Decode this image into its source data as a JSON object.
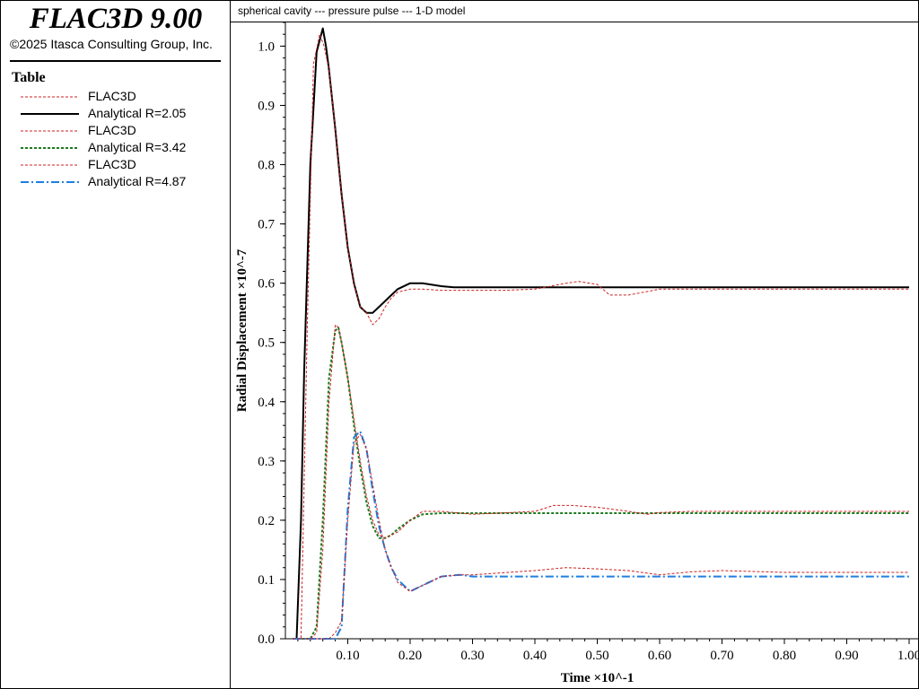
{
  "app": {
    "title": "FLAC3D 9.00",
    "copyright": "©2025 Itasca Consulting Group, Inc."
  },
  "legend": {
    "heading": "Table",
    "items": [
      {
        "label": "FLAC3D",
        "color": "#cc2222",
        "style": "dashed"
      },
      {
        "label": "Analytical R=2.05",
        "color": "#000000",
        "style": "solid"
      },
      {
        "label": "FLAC3D",
        "color": "#cc2222",
        "style": "dashed"
      },
      {
        "label": "Analytical R=3.42",
        "color": "#1e7a1e",
        "style": "dashed"
      },
      {
        "label": "FLAC3D",
        "color": "#cc2222",
        "style": "dashed"
      },
      {
        "label": "Analytical R=4.87",
        "color": "#1f7fe0",
        "style": "dashdot"
      }
    ]
  },
  "chart_data": {
    "type": "line",
    "title": "spherical cavity --- pressure pulse --- 1-D model",
    "xlabel": "Time ×10^-1",
    "ylabel": "Radial Displacement ×10^-7",
    "xlim": [
      0.0,
      1.0
    ],
    "ylim": [
      0.0,
      1.04
    ],
    "xticks": [
      "0.10",
      "0.20",
      "0.30",
      "0.40",
      "0.50",
      "0.60",
      "0.70",
      "0.80",
      "0.90",
      "1.00"
    ],
    "yticks": [
      "0.0",
      "0.1",
      "0.2",
      "0.3",
      "0.4",
      "0.5",
      "0.6",
      "0.7",
      "0.8",
      "0.9",
      "1.0"
    ],
    "grid": false,
    "series": [
      {
        "name": "FLAC3D",
        "color": "#cc2222",
        "style": "dashed",
        "x": [
          0.012,
          0.025,
          0.035,
          0.045,
          0.055,
          0.062,
          0.07,
          0.08,
          0.09,
          0.1,
          0.11,
          0.12,
          0.13,
          0.14,
          0.15,
          0.16,
          0.17,
          0.18,
          0.2,
          0.22,
          0.25,
          0.3,
          0.35,
          0.4,
          0.45,
          0.47,
          0.5,
          0.52,
          0.55,
          0.6,
          0.7,
          0.8,
          0.9,
          1.0
        ],
        "y": [
          0.0,
          0.0,
          0.52,
          0.97,
          1.02,
          1.0,
          0.96,
          0.86,
          0.75,
          0.66,
          0.6,
          0.56,
          0.55,
          0.53,
          0.54,
          0.56,
          0.575,
          0.585,
          0.59,
          0.59,
          0.588,
          0.588,
          0.588,
          0.59,
          0.6,
          0.603,
          0.598,
          0.58,
          0.58,
          0.59,
          0.59,
          0.59,
          0.59,
          0.59
        ]
      },
      {
        "name": "Analytical R=2.05",
        "color": "#000000",
        "style": "solid",
        "x": [
          0.012,
          0.018,
          0.025,
          0.03,
          0.04,
          0.05,
          0.06,
          0.065,
          0.07,
          0.08,
          0.09,
          0.1,
          0.11,
          0.12,
          0.13,
          0.14,
          0.15,
          0.16,
          0.17,
          0.18,
          0.2,
          0.22,
          0.25,
          0.27,
          0.3,
          0.4,
          0.5,
          0.6,
          0.7,
          0.8,
          0.9,
          1.0
        ],
        "y": [
          0.0,
          0.0,
          0.2,
          0.45,
          0.8,
          0.99,
          1.03,
          1.0,
          0.96,
          0.86,
          0.75,
          0.66,
          0.6,
          0.56,
          0.55,
          0.55,
          0.56,
          0.57,
          0.58,
          0.59,
          0.6,
          0.6,
          0.595,
          0.593,
          0.593,
          0.593,
          0.593,
          0.593,
          0.593,
          0.593,
          0.593,
          0.593
        ]
      },
      {
        "name": "FLAC3D",
        "color": "#cc2222",
        "style": "dashed",
        "x": [
          0.012,
          0.04,
          0.05,
          0.06,
          0.07,
          0.08,
          0.085,
          0.09,
          0.1,
          0.11,
          0.12,
          0.13,
          0.14,
          0.15,
          0.16,
          0.17,
          0.18,
          0.2,
          0.22,
          0.25,
          0.3,
          0.4,
          0.43,
          0.46,
          0.5,
          0.55,
          0.58,
          0.6,
          0.65,
          0.7,
          0.8,
          0.9,
          1.0
        ],
        "y": [
          0.0,
          0.0,
          0.01,
          0.15,
          0.4,
          0.53,
          0.525,
          0.5,
          0.44,
          0.37,
          0.3,
          0.24,
          0.2,
          0.175,
          0.17,
          0.175,
          0.18,
          0.2,
          0.215,
          0.215,
          0.21,
          0.215,
          0.225,
          0.225,
          0.222,
          0.215,
          0.21,
          0.213,
          0.215,
          0.215,
          0.215,
          0.215,
          0.215
        ]
      },
      {
        "name": "Analytical R=3.42",
        "color": "#1e7a1e",
        "style": "dashed",
        "x": [
          0.012,
          0.04,
          0.05,
          0.06,
          0.07,
          0.08,
          0.085,
          0.09,
          0.1,
          0.11,
          0.12,
          0.13,
          0.14,
          0.15,
          0.16,
          0.17,
          0.18,
          0.2,
          0.22,
          0.25,
          0.3,
          0.4,
          0.5,
          0.6,
          0.7,
          0.8,
          0.9,
          1.0
        ],
        "y": [
          0.0,
          0.0,
          0.02,
          0.2,
          0.44,
          0.52,
          0.525,
          0.5,
          0.44,
          0.36,
          0.29,
          0.23,
          0.19,
          0.17,
          0.17,
          0.175,
          0.185,
          0.2,
          0.21,
          0.212,
          0.212,
          0.212,
          0.212,
          0.212,
          0.212,
          0.212,
          0.212,
          0.212
        ]
      },
      {
        "name": "FLAC3D",
        "color": "#cc2222",
        "style": "dashed",
        "x": [
          0.012,
          0.07,
          0.08,
          0.09,
          0.1,
          0.11,
          0.12,
          0.13,
          0.14,
          0.15,
          0.16,
          0.17,
          0.18,
          0.2,
          0.22,
          0.25,
          0.28,
          0.3,
          0.4,
          0.45,
          0.5,
          0.55,
          0.6,
          0.65,
          0.7,
          0.8,
          0.9,
          1.0
        ],
        "y": [
          0.0,
          0.0,
          0.01,
          0.03,
          0.2,
          0.33,
          0.345,
          0.32,
          0.26,
          0.2,
          0.15,
          0.12,
          0.095,
          0.08,
          0.09,
          0.105,
          0.108,
          0.108,
          0.115,
          0.12,
          0.118,
          0.115,
          0.108,
          0.113,
          0.115,
          0.112,
          0.112,
          0.112
        ]
      },
      {
        "name": "Analytical R=4.87",
        "color": "#1f7fe0",
        "style": "dashdot",
        "x": [
          0.012,
          0.08,
          0.09,
          0.1,
          0.11,
          0.12,
          0.13,
          0.14,
          0.15,
          0.16,
          0.17,
          0.18,
          0.2,
          0.22,
          0.25,
          0.28,
          0.3,
          0.4,
          0.5,
          0.6,
          0.7,
          0.8,
          0.9,
          1.0
        ],
        "y": [
          0.0,
          0.0,
          0.02,
          0.22,
          0.34,
          0.35,
          0.32,
          0.25,
          0.19,
          0.15,
          0.12,
          0.1,
          0.08,
          0.09,
          0.105,
          0.108,
          0.105,
          0.105,
          0.105,
          0.105,
          0.105,
          0.105,
          0.105,
          0.105
        ]
      }
    ]
  }
}
